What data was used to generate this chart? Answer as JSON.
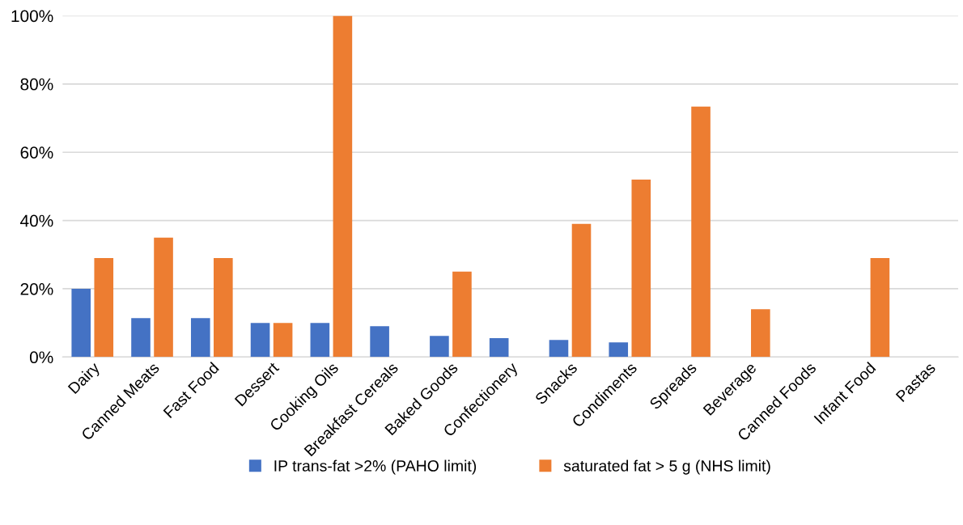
{
  "chart_data": {
    "type": "bar",
    "categories": [
      "Dairy",
      "Canned Meats",
      "Fast Food",
      "Dessert",
      "Cooking Oils",
      "Breakfast Cereals",
      "Baked Goods",
      "Confectionery",
      "Snacks",
      "Condiments",
      "Spreads",
      "Beverage",
      "Canned Foods",
      "Infant Food",
      "Pastas"
    ],
    "series": [
      {
        "name": "IP trans-fat >2% (PAHO limit)",
        "color": "#4472c4",
        "values": [
          20,
          11.4,
          11.4,
          10,
          10,
          9,
          6.2,
          5.5,
          5,
          4.3,
          0,
          0,
          0,
          0,
          0
        ]
      },
      {
        "name": "saturated fat > 5 g (NHS limit)",
        "color": "#ed7d31",
        "values": [
          29,
          35,
          29,
          10,
          100,
          0,
          25,
          0,
          39,
          52,
          73.4,
          14,
          0,
          29,
          0
        ]
      }
    ],
    "ylim": [
      0,
      100
    ],
    "yticks": [
      {
        "value": 0,
        "label": "0%"
      },
      {
        "value": 20,
        "label": "20%"
      },
      {
        "value": 40,
        "label": "40%"
      },
      {
        "value": 60,
        "label": "60%"
      },
      {
        "value": 80,
        "label": "80%"
      },
      {
        "value": 100,
        "label": "100%"
      }
    ],
    "grid": "y",
    "legend": "bottom"
  }
}
